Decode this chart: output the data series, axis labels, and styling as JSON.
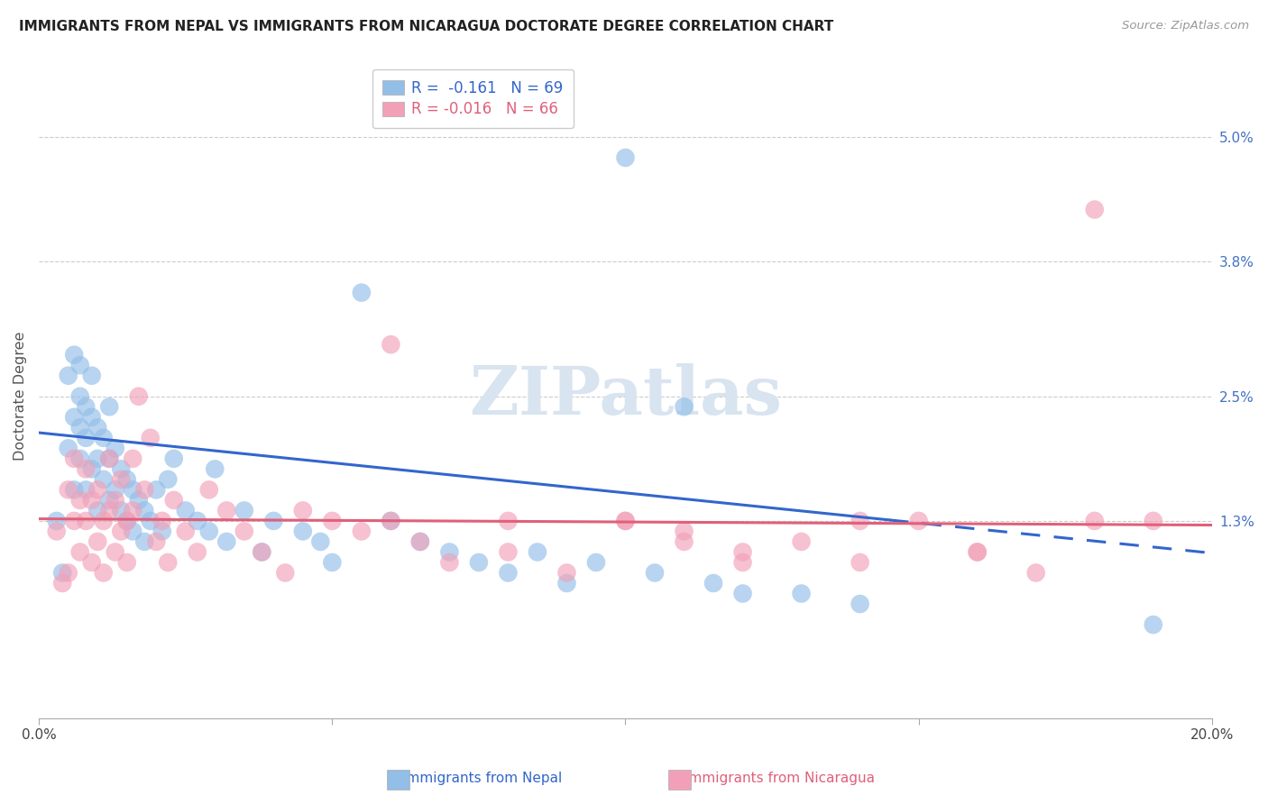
{
  "title": "IMMIGRANTS FROM NEPAL VS IMMIGRANTS FROM NICARAGUA DOCTORATE DEGREE CORRELATION CHART",
  "source": "Source: ZipAtlas.com",
  "ylabel": "Doctorate Degree",
  "ytick_values": [
    0.05,
    0.038,
    0.025,
    0.013
  ],
  "xmin": 0.0,
  "xmax": 0.2,
  "ymin": -0.006,
  "ymax": 0.056,
  "legend_nepal_R": "-0.161",
  "legend_nepal_N": "69",
  "legend_nicaragua_R": "-0.016",
  "legend_nicaragua_N": "66",
  "color_nepal": "#92BEE8",
  "color_nicaragua": "#F2A0B8",
  "color_nepal_line": "#3366CC",
  "color_nicaragua_line": "#E0607A",
  "color_ytick": "#4472C4",
  "color_watermark": "#D8E4F0",
  "nepal_intercept": 0.0215,
  "nepal_slope": -0.058,
  "nicaragua_intercept": 0.0132,
  "nicaragua_slope": -0.003,
  "nepal_line_xstart": 0.0,
  "nepal_line_xend": 0.145,
  "nepal_dash_xstart": 0.145,
  "nepal_dash_xend": 0.2,
  "nicaragua_line_xstart": 0.0,
  "nicaragua_line_xend": 0.2,
  "nepal_x": [
    0.003,
    0.004,
    0.005,
    0.005,
    0.006,
    0.006,
    0.006,
    0.007,
    0.007,
    0.007,
    0.007,
    0.008,
    0.008,
    0.008,
    0.009,
    0.009,
    0.009,
    0.01,
    0.01,
    0.01,
    0.011,
    0.011,
    0.012,
    0.012,
    0.012,
    0.013,
    0.013,
    0.014,
    0.014,
    0.015,
    0.015,
    0.016,
    0.016,
    0.017,
    0.018,
    0.018,
    0.019,
    0.02,
    0.021,
    0.022,
    0.023,
    0.025,
    0.027,
    0.029,
    0.03,
    0.032,
    0.035,
    0.038,
    0.04,
    0.045,
    0.048,
    0.05,
    0.055,
    0.06,
    0.065,
    0.07,
    0.075,
    0.08,
    0.085,
    0.09,
    0.095,
    0.1,
    0.105,
    0.11,
    0.115,
    0.12,
    0.13,
    0.14,
    0.19
  ],
  "nepal_y": [
    0.013,
    0.008,
    0.02,
    0.027,
    0.023,
    0.029,
    0.016,
    0.019,
    0.022,
    0.025,
    0.028,
    0.021,
    0.024,
    0.016,
    0.018,
    0.023,
    0.027,
    0.014,
    0.019,
    0.022,
    0.017,
    0.021,
    0.015,
    0.019,
    0.024,
    0.016,
    0.02,
    0.014,
    0.018,
    0.013,
    0.017,
    0.012,
    0.016,
    0.015,
    0.011,
    0.014,
    0.013,
    0.016,
    0.012,
    0.017,
    0.019,
    0.014,
    0.013,
    0.012,
    0.018,
    0.011,
    0.014,
    0.01,
    0.013,
    0.012,
    0.011,
    0.009,
    0.035,
    0.013,
    0.011,
    0.01,
    0.009,
    0.008,
    0.01,
    0.007,
    0.009,
    0.048,
    0.008,
    0.024,
    0.007,
    0.006,
    0.006,
    0.005,
    0.003
  ],
  "nicaragua_x": [
    0.003,
    0.004,
    0.005,
    0.005,
    0.006,
    0.006,
    0.007,
    0.007,
    0.008,
    0.008,
    0.009,
    0.009,
    0.01,
    0.01,
    0.011,
    0.011,
    0.012,
    0.012,
    0.013,
    0.013,
    0.014,
    0.014,
    0.015,
    0.015,
    0.016,
    0.016,
    0.017,
    0.018,
    0.019,
    0.02,
    0.021,
    0.022,
    0.023,
    0.025,
    0.027,
    0.029,
    0.032,
    0.035,
    0.038,
    0.042,
    0.045,
    0.05,
    0.055,
    0.06,
    0.065,
    0.07,
    0.08,
    0.09,
    0.1,
    0.11,
    0.12,
    0.13,
    0.14,
    0.15,
    0.16,
    0.17,
    0.18,
    0.19,
    0.06,
    0.08,
    0.1,
    0.11,
    0.12,
    0.14,
    0.16,
    0.18
  ],
  "nicaragua_y": [
    0.012,
    0.007,
    0.016,
    0.008,
    0.013,
    0.019,
    0.015,
    0.01,
    0.013,
    0.018,
    0.009,
    0.015,
    0.011,
    0.016,
    0.013,
    0.008,
    0.014,
    0.019,
    0.01,
    0.015,
    0.012,
    0.017,
    0.013,
    0.009,
    0.014,
    0.019,
    0.025,
    0.016,
    0.021,
    0.011,
    0.013,
    0.009,
    0.015,
    0.012,
    0.01,
    0.016,
    0.014,
    0.012,
    0.01,
    0.008,
    0.014,
    0.013,
    0.012,
    0.013,
    0.011,
    0.009,
    0.01,
    0.008,
    0.013,
    0.012,
    0.01,
    0.011,
    0.009,
    0.013,
    0.01,
    0.008,
    0.013,
    0.013,
    0.03,
    0.013,
    0.013,
    0.011,
    0.009,
    0.013,
    0.01,
    0.043
  ]
}
